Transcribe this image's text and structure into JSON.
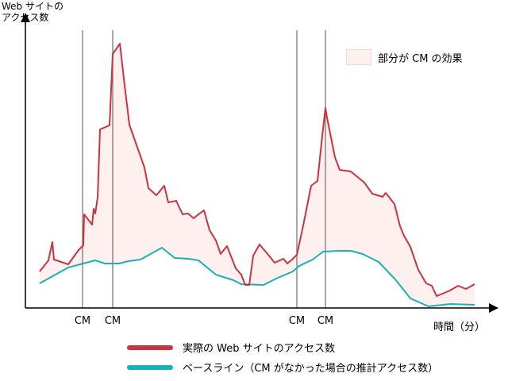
{
  "chart_data": {
    "type": "line",
    "ylabel": [
      "Web サイトの",
      "アクセス数"
    ],
    "xlabel": "時間（分）",
    "xlim": [
      0,
      590
    ],
    "ylim": [
      0,
      340
    ],
    "grid": false,
    "cm_markers": [
      {
        "label": "CM",
        "x": 72
      },
      {
        "label": "CM",
        "x": 110
      },
      {
        "label": "CM",
        "x": 342
      },
      {
        "label": "CM",
        "x": 378
      }
    ],
    "effect_legend": "部分が CM の効果",
    "series": [
      {
        "name": "実際の Web サイトのアクセス数",
        "color": "#cc3340",
        "points": [
          [
            18,
            46
          ],
          [
            29,
            60
          ],
          [
            34,
            83
          ],
          [
            36,
            61
          ],
          [
            54,
            55
          ],
          [
            67,
            73
          ],
          [
            73,
            79
          ],
          [
            74,
            118
          ],
          [
            84,
            105
          ],
          [
            86,
            125
          ],
          [
            88,
            119
          ],
          [
            91,
            139
          ],
          [
            94,
            225
          ],
          [
            106,
            230
          ],
          [
            110,
            320
          ],
          [
            119,
            333
          ],
          [
            125,
            281
          ],
          [
            131,
            231
          ],
          [
            150,
            177
          ],
          [
            155,
            151
          ],
          [
            165,
            142
          ],
          [
            175,
            154
          ],
          [
            180,
            133
          ],
          [
            190,
            135
          ],
          [
            198,
            118
          ],
          [
            205,
            119
          ],
          [
            212,
            113
          ],
          [
            218,
            118
          ],
          [
            225,
            123
          ],
          [
            232,
            98
          ],
          [
            240,
            85
          ],
          [
            246,
            68
          ],
          [
            254,
            78
          ],
          [
            265,
            50
          ],
          [
            272,
            42
          ],
          [
            277,
            29
          ],
          [
            282,
            29
          ],
          [
            287,
            66
          ],
          [
            295,
            80
          ],
          [
            306,
            67
          ],
          [
            314,
            57
          ],
          [
            325,
            62
          ],
          [
            330,
            56
          ],
          [
            336,
            61
          ],
          [
            342,
            67
          ],
          [
            350,
            104
          ],
          [
            360,
            154
          ],
          [
            368,
            160
          ],
          [
            374,
            217
          ],
          [
            378,
            252
          ],
          [
            380,
            240
          ],
          [
            390,
            190
          ],
          [
            396,
            174
          ],
          [
            410,
            172
          ],
          [
            427,
            158
          ],
          [
            437,
            144
          ],
          [
            450,
            140
          ],
          [
            454,
            145
          ],
          [
            465,
            131
          ],
          [
            472,
            103
          ],
          [
            477,
            91
          ],
          [
            485,
            77
          ],
          [
            495,
            48
          ],
          [
            505,
            31
          ],
          [
            512,
            28
          ],
          [
            518,
            15
          ],
          [
            535,
            22
          ],
          [
            545,
            28
          ],
          [
            555,
            24
          ],
          [
            566,
            30
          ]
        ]
      },
      {
        "name": "ベースライン（CM がなかった場合の推計アクセス数）",
        "color": "#19b1b3",
        "points": [
          [
            18,
            31
          ],
          [
            54,
            51
          ],
          [
            88,
            60
          ],
          [
            100,
            56
          ],
          [
            118,
            56
          ],
          [
            130,
            59
          ],
          [
            145,
            61
          ],
          [
            172,
            76
          ],
          [
            188,
            63
          ],
          [
            205,
            62
          ],
          [
            218,
            60
          ],
          [
            240,
            42
          ],
          [
            262,
            35
          ],
          [
            272,
            30
          ],
          [
            300,
            29
          ],
          [
            318,
            38
          ],
          [
            337,
            46
          ],
          [
            345,
            53
          ],
          [
            362,
            61
          ],
          [
            375,
            71
          ],
          [
            395,
            72
          ],
          [
            410,
            72
          ],
          [
            425,
            68
          ],
          [
            445,
            58
          ],
          [
            466,
            36
          ],
          [
            485,
            12
          ],
          [
            508,
            2
          ],
          [
            535,
            5
          ],
          [
            566,
            4
          ]
        ]
      }
    ]
  }
}
